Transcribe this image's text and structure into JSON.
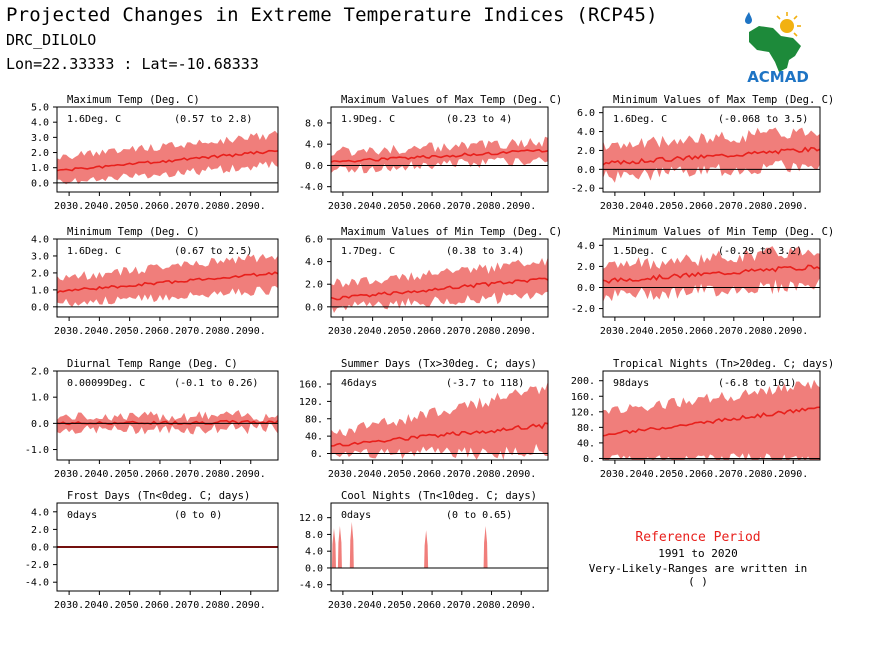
{
  "header": {
    "title": "Projected Changes in Extreme Temperature Indices (RCP45)",
    "station": "DRC_DILOLO",
    "coords": "Lon=22.33333 : Lat=-10.68333"
  },
  "logo": {
    "text": "ACMAD"
  },
  "colors": {
    "band": "#f07e7b",
    "line": "#e8201c",
    "zero": "#000000"
  },
  "reference": {
    "title": "Reference Period",
    "years": "1991 to 2020",
    "note": "Very-Likely-Ranges are written in ( )"
  },
  "x_ticks": [
    "2030.",
    "2040.",
    "2050.",
    "2060.",
    "2070.",
    "2080.",
    "2090."
  ],
  "chart_data": [
    {
      "type": "area",
      "title": "Maximum Temp (Deg. C)",
      "value_label": "1.6Deg. C",
      "range_label": "(0.57 to 2.8)",
      "x": [
        2026,
        2099
      ],
      "ylim": [
        -0.6,
        5.0
      ],
      "yticks": [
        "0.0",
        "1.0",
        "2.0",
        "3.0",
        "4.0",
        "5.0"
      ],
      "ytick_values": [
        0,
        1,
        2,
        3,
        4,
        5
      ],
      "trend": [
        0.8,
        2.1
      ],
      "band_low": [
        0.0,
        1.2
      ],
      "band_high": [
        1.7,
        3.2
      ],
      "noise": [
        0.3,
        0.4
      ],
      "seed": 1
    },
    {
      "type": "area",
      "title": "Maximum Values of Max Temp (Deg. C)",
      "value_label": "1.9Deg. C",
      "range_label": "(0.23 to 4)",
      "x": [
        2026,
        2099
      ],
      "ylim": [
        -5.0,
        11.0
      ],
      "yticks": [
        "-4.0",
        "0.0",
        "4.0",
        "8.0"
      ],
      "ytick_values": [
        -4,
        0,
        4,
        8
      ],
      "trend": [
        0.7,
        2.8
      ],
      "band_low": [
        -0.8,
        1.0
      ],
      "band_high": [
        2.5,
        4.5
      ],
      "noise": [
        1.2,
        1.2
      ],
      "seed": 2
    },
    {
      "type": "area",
      "title": "Minimum Values of Max Temp (Deg. C)",
      "value_label": "1.6Deg. C",
      "range_label": "(-0.068 to 3.5)",
      "x": [
        2026,
        2099
      ],
      "ylim": [
        -2.4,
        6.6
      ],
      "yticks": [
        "-2.0",
        "0.0",
        "2.0",
        "4.0",
        "6.0"
      ],
      "ytick_values": [
        -2,
        0,
        2,
        4,
        6
      ],
      "trend": [
        0.6,
        2.2
      ],
      "band_low": [
        -0.8,
        0.5
      ],
      "band_high": [
        2.4,
        4.2
      ],
      "noise": [
        0.9,
        0.9
      ],
      "seed": 3
    },
    {
      "type": "area",
      "title": "Minimum Temp (Deg. C)",
      "value_label": "1.6Deg. C",
      "range_label": "(0.67 to 2.5)",
      "x": [
        2026,
        2099
      ],
      "ylim": [
        -0.6,
        4.0
      ],
      "yticks": [
        "0.0",
        "1.0",
        "2.0",
        "3.0",
        "4.0"
      ],
      "ytick_values": [
        0,
        1,
        2,
        3,
        4
      ],
      "trend": [
        0.9,
        2.0
      ],
      "band_low": [
        0.2,
        1.0
      ],
      "band_high": [
        1.7,
        3.0
      ],
      "noise": [
        0.35,
        0.35
      ],
      "seed": 4
    },
    {
      "type": "area",
      "title": "Maximum Values of Min Temp (Deg. C)",
      "value_label": "1.7Deg. C",
      "range_label": "(0.38 to 3.4)",
      "x": [
        2026,
        2099
      ],
      "ylim": [
        -0.9,
        6.0
      ],
      "yticks": [
        "0.0",
        "2.0",
        "4.0",
        "6.0"
      ],
      "ytick_values": [
        0,
        2,
        4,
        6
      ],
      "trend": [
        0.7,
        2.5
      ],
      "band_low": [
        -0.1,
        1.0
      ],
      "band_high": [
        2.0,
        4.0
      ],
      "noise": [
        0.6,
        0.7
      ],
      "seed": 5
    },
    {
      "type": "area",
      "title": "Minimum Values of Min Temp (Deg. C)",
      "value_label": "1.5Deg. C",
      "range_label": "(-0.29 to 3.2)",
      "x": [
        2026,
        2099
      ],
      "ylim": [
        -2.8,
        4.6
      ],
      "yticks": [
        "-2.0",
        "0.0",
        "2.0",
        "4.0"
      ],
      "ytick_values": [
        -2,
        0,
        2,
        4
      ],
      "trend": [
        0.6,
        2.0
      ],
      "band_low": [
        -0.8,
        0.3
      ],
      "band_high": [
        2.0,
        3.6
      ],
      "noise": [
        0.8,
        0.9
      ],
      "seed": 6
    },
    {
      "type": "area",
      "title": "Diurnal Temp Range (Deg. C)",
      "value_label": "0.00099Deg. C",
      "range_label": "(-0.1 to 0.26)",
      "x": [
        2026,
        2099
      ],
      "ylim": [
        -1.4,
        2.0
      ],
      "yticks": [
        "-1.0",
        "0.0",
        "1.0",
        "2.0"
      ],
      "ytick_values": [
        -1,
        0,
        1,
        2
      ],
      "trend": [
        0.0,
        0.05
      ],
      "band_low": [
        -0.25,
        -0.2
      ],
      "band_high": [
        0.25,
        0.3
      ],
      "noise": [
        0.2,
        0.3
      ],
      "seed": 7
    },
    {
      "type": "area",
      "title": "Summer Days (Tx>30deg. C; days)",
      "value_label": "46days",
      "range_label": "(-3.7 to 118)",
      "x": [
        2026,
        2099
      ],
      "ylim": [
        -15,
        190
      ],
      "yticks": [
        "0.",
        "40.",
        "80.",
        "120.",
        "160."
      ],
      "ytick_values": [
        0,
        40,
        80,
        120,
        160
      ],
      "trend": [
        18,
        65
      ],
      "band_low": [
        -2,
        5
      ],
      "band_high": [
        45,
        150
      ],
      "noise": [
        15,
        25
      ],
      "seed": 8
    },
    {
      "type": "area",
      "title": "Tropical Nights (Tn>20deg. C; days)",
      "value_label": "98days",
      "range_label": "(-6.8 to 161)",
      "x": [
        2026,
        2099
      ],
      "ylim": [
        -4,
        225
      ],
      "yticks": [
        "0.",
        "40.",
        "80.",
        "120.",
        "160.",
        "200."
      ],
      "ytick_values": [
        0,
        40,
        80,
        120,
        160,
        200
      ],
      "trend": [
        60,
        130
      ],
      "band_low": [
        0,
        0
      ],
      "band_high": [
        120,
        190
      ],
      "noise": [
        15,
        20
      ],
      "seed": 9
    },
    {
      "type": "area",
      "title": "Frost Days (Tn<0deg. C; days)",
      "value_label": "0days",
      "range_label": "(0 to 0)",
      "x": [
        2026,
        2099
      ],
      "ylim": [
        -5.0,
        5.0
      ],
      "yticks": [
        "-4.0",
        "-2.0",
        "0.0",
        "2.0",
        "4.0"
      ],
      "ytick_values": [
        -4,
        -2,
        0,
        2,
        4
      ],
      "trend": [
        0,
        0
      ],
      "band_low": [
        0,
        0
      ],
      "band_high": [
        0,
        0
      ],
      "noise": [
        0,
        0
      ],
      "seed": 10,
      "flat": true
    },
    {
      "type": "area",
      "title": "Cool Nights (Tn<10deg. C; days)",
      "value_label": "0days",
      "range_label": "(0 to 0.65)",
      "x": [
        2026,
        2099
      ],
      "ylim": [
        -5.5,
        15.5
      ],
      "yticks": [
        "-4.0",
        "0.0",
        "4.0",
        "8.0",
        "12.0"
      ],
      "ytick_values": [
        -4,
        0,
        4,
        8,
        12
      ],
      "trend": [
        0,
        0
      ],
      "band_low": [
        0,
        0
      ],
      "band_high": [
        0,
        0
      ],
      "noise": [
        0,
        0
      ],
      "seed": 11,
      "spikes": [
        [
          2027,
          9.5
        ],
        [
          2029,
          10
        ],
        [
          2033,
          11
        ],
        [
          2058,
          9
        ],
        [
          2078,
          10
        ]
      ]
    }
  ]
}
